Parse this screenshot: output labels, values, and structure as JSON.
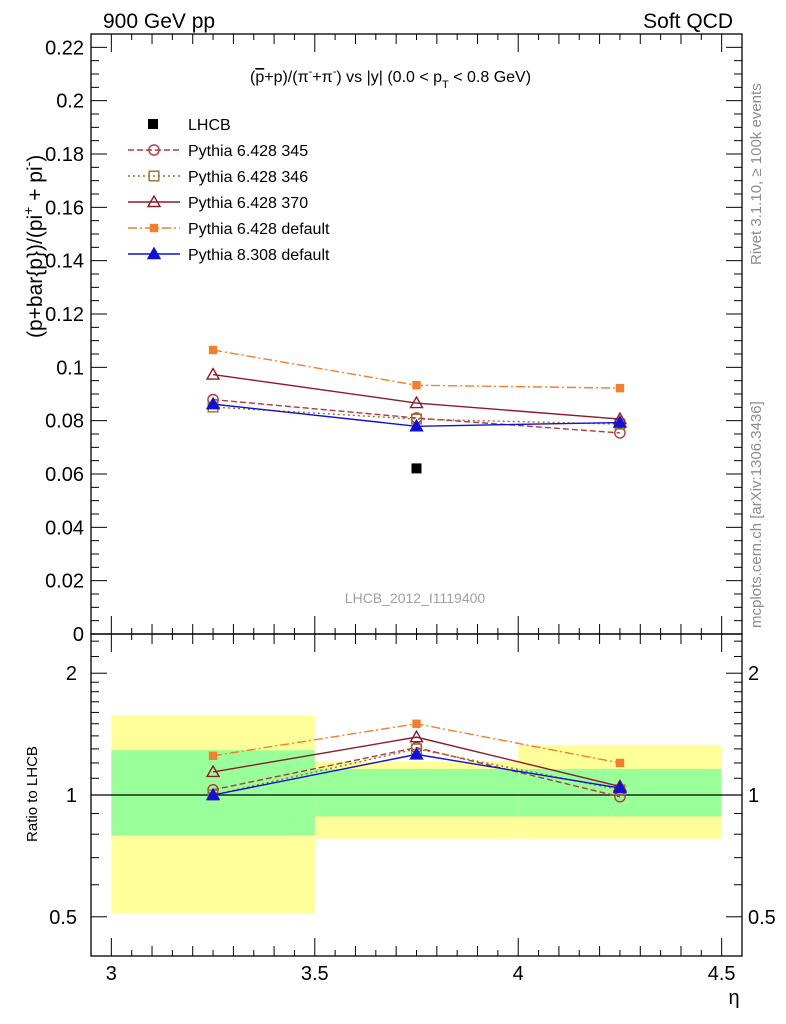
{
  "header": {
    "left": "900 GeV pp",
    "right": "Soft QCD"
  },
  "side_labels": {
    "rivet": "Rivet 3.1.10, ≥ 100k events",
    "mcplots": "mcplots.cern.ch [arXiv:1306.3436]"
  },
  "chart_data": [
    {
      "panel": "main",
      "type": "line",
      "title": "(p̅+p)/(π⁻+π⁻) vs |y| (0.0 < pT < 0.8 GeV)",
      "title_parts": {
        "prefix": "(",
        "pbar": "p",
        "mid": "+p)/(π",
        "sup1": "-",
        "plus": "+π",
        "sup2": "-",
        "suffix": ") vs |y| (0.0 < p",
        "sub": "T",
        "end": " < 0.8 GeV)"
      },
      "ylabel": "(p+bar{p})/(pi⁺ + pi⁻)",
      "ylabel_parts": {
        "main": "(p+bar{p})/(pi",
        "sup1": "+",
        "mid": " + pi",
        "sup2": "-",
        "end": ")"
      },
      "watermark": "LHCB_2012_I1119400",
      "xlim": [
        2.95,
        4.55
      ],
      "ylim": [
        0,
        0.225
      ],
      "yticks": [
        "0",
        "0.02",
        "0.04",
        "0.06",
        "0.08",
        "0.1",
        "0.12",
        "0.14",
        "0.16",
        "0.18",
        "0.2",
        "0.22"
      ],
      "legend_position": "top-left",
      "series": [
        {
          "name": "LHCB",
          "style": "data",
          "color": "#000000",
          "x": [
            3.75
          ],
          "y": [
            0.0621
          ]
        },
        {
          "name": "Pythia 6.428 345",
          "style": "dashed",
          "marker": "open-circle",
          "color": "#b03a3a",
          "x": [
            3.25,
            3.75,
            4.25
          ],
          "y": [
            0.0879,
            0.081,
            0.0754
          ]
        },
        {
          "name": "Pythia 6.428 346",
          "style": "dotted",
          "marker": "open-square",
          "color": "#9a6f2e",
          "x": [
            3.25,
            3.75,
            4.25
          ],
          "y": [
            0.0851,
            0.0806,
            0.0787
          ]
        },
        {
          "name": "Pythia 6.428 370",
          "style": "solid",
          "marker": "open-triangle",
          "color": "#8b1a2b",
          "x": [
            3.25,
            3.75,
            4.25
          ],
          "y": [
            0.0973,
            0.0866,
            0.0806
          ]
        },
        {
          "name": "Pythia 6.428 default",
          "style": "dashdot",
          "marker": "filled-square",
          "color": "#f47e2c",
          "x": [
            3.25,
            3.75,
            4.25
          ],
          "y": [
            0.1065,
            0.0933,
            0.0922
          ]
        },
        {
          "name": "Pythia 8.308 default",
          "style": "solid",
          "marker": "filled-triangle",
          "color": "#1010d8",
          "x": [
            3.25,
            3.75,
            4.25
          ],
          "y": [
            0.0862,
            0.0779,
            0.0793
          ]
        }
      ]
    },
    {
      "panel": "ratio",
      "type": "line",
      "ylabel": "Ratio to LHCB",
      "xlabel": "η",
      "xlim": [
        2.95,
        4.55
      ],
      "ylim": [
        0.4,
        2.5
      ],
      "log_y": true,
      "xticks": [
        "3",
        "3.5",
        "4",
        "4.5"
      ],
      "yticks": [
        "0.5",
        "1",
        "2"
      ],
      "reference_line": 1,
      "bands": [
        {
          "x": [
            3.0,
            3.5
          ],
          "yellow": [
            0.51,
            1.57
          ],
          "green": [
            0.795,
            1.29
          ]
        },
        {
          "x": [
            3.5,
            4.0
          ],
          "yellow": [
            0.78,
            1.21
          ],
          "green": [
            0.885,
            1.16
          ]
        },
        {
          "x": [
            4.0,
            4.5
          ],
          "yellow": [
            0.78,
            1.33
          ],
          "green": [
            0.885,
            1.16
          ]
        }
      ],
      "series": [
        {
          "name": "Pythia 6.428 345",
          "x": [
            3.25,
            3.75,
            4.25
          ],
          "y": [
            1.03,
            1.31,
            0.99
          ]
        },
        {
          "name": "Pythia 6.428 346",
          "x": [
            3.25,
            3.75,
            4.25
          ],
          "y": [
            1.0,
            1.3,
            1.03
          ]
        },
        {
          "name": "Pythia 6.428 370",
          "x": [
            3.25,
            3.75,
            4.25
          ],
          "y": [
            1.14,
            1.39,
            1.05
          ]
        },
        {
          "name": "Pythia 6.428 default",
          "x": [
            3.25,
            3.75,
            4.25
          ],
          "y": [
            1.25,
            1.5,
            1.2
          ]
        },
        {
          "name": "Pythia 8.308 default",
          "x": [
            3.25,
            3.75,
            4.25
          ],
          "y": [
            1.0,
            1.26,
            1.04
          ]
        }
      ]
    }
  ]
}
